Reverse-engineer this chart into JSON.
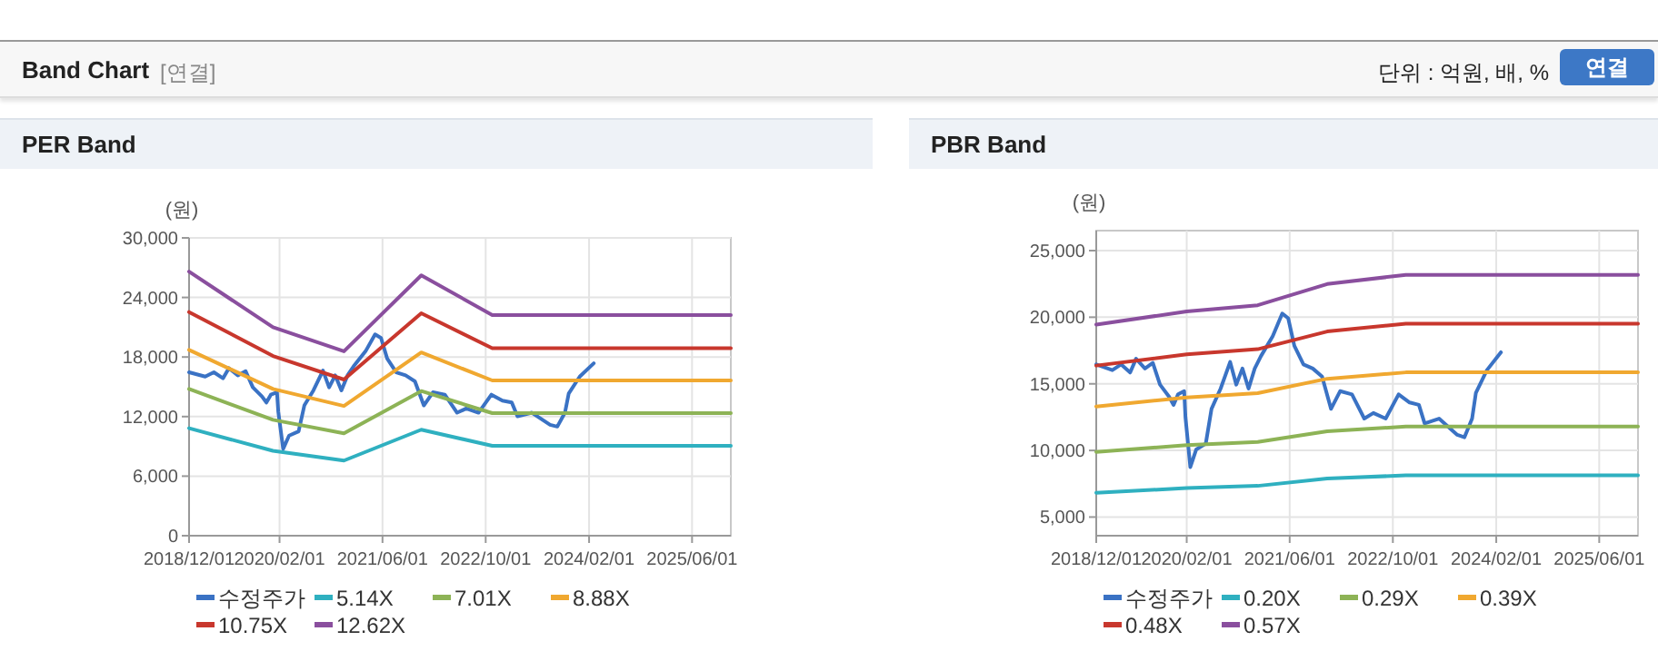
{
  "chart_data": [
    {
      "type": "line",
      "title": "PER Band",
      "ylabel": "(원)",
      "annotations": [
        "Band Chart",
        "[연결]",
        "단위 : 억원, 배, %",
        "연결"
      ],
      "xlim": [
        "2018-12-01",
        "2025-12-01"
      ],
      "xticks": [
        {
          "value": "2018-12-01",
          "label": "2018/12/01"
        },
        {
          "value": "2020-02-01",
          "label": "2020/02/01"
        },
        {
          "value": "2021-06-01",
          "label": "2021/06/01"
        },
        {
          "value": "2022-10-01",
          "label": "2022/10/01"
        },
        {
          "value": "2024-02-01",
          "label": "2024/02/01"
        },
        {
          "value": "2025-06-01",
          "label": "2025/06/01"
        }
      ],
      "ylim": [
        0,
        30000
      ],
      "yticks": [
        0,
        {
          "value": 6000,
          "label": "6,000"
        },
        {
          "value": 12000,
          "label": "12,000"
        },
        {
          "value": 18000,
          "label": "18,000"
        },
        {
          "value": 24000,
          "label": "24,000"
        },
        {
          "value": 30000,
          "label": "30,000"
        }
      ],
      "grid": true,
      "legend": "bottom",
      "series": [
        {
          "name": "수정주가",
          "color": "#3a72c4",
          "x": [
            "2018-12-01",
            "2019-02-15",
            "2019-03-28",
            "2019-05-10",
            "2019-06-07",
            "2019-07-19",
            "2019-08-25",
            "2019-09-28",
            "2019-11-10",
            "2019-12-01",
            "2019-12-22",
            "2020-01-20",
            "2020-01-26",
            "2020-02-18",
            "2020-03-17",
            "2020-05-01",
            "2020-05-28",
            "2020-07-10",
            "2020-08-24",
            "2020-09-22",
            "2020-10-21",
            "2020-11-19",
            "2020-12-18",
            "2021-01-16",
            "2021-03-13",
            "2021-04-27",
            "2021-05-25",
            "2021-06-23",
            "2021-08-05",
            "2021-09-18",
            "2021-11-01",
            "2021-12-13",
            "2022-01-25",
            "2022-03-22",
            "2022-05-19",
            "2022-07-01",
            "2022-08-28",
            "2022-10-28",
            "2022-12-19",
            "2023-02-01",
            "2023-02-28",
            "2023-05-07",
            "2023-08-01",
            "2023-09-04",
            "2023-10-10",
            "2023-10-28",
            "2023-12-19",
            "2024-02-23"
          ],
          "values": [
            16460,
            16030,
            16460,
            15850,
            16880,
            16150,
            16580,
            14940,
            14030,
            13420,
            14210,
            14450,
            12510,
            8750,
            10080,
            10510,
            13120,
            14640,
            16640,
            14940,
            16150,
            14640,
            16150,
            17070,
            18580,
            20280,
            19920,
            17850,
            16460,
            16150,
            15550,
            13120,
            14450,
            14210,
            12390,
            12810,
            12390,
            14210,
            13600,
            13420,
            12020,
            12390,
            11170,
            10990,
            12390,
            14330,
            16030,
            17370
          ]
        },
        {
          "name": "5.14X",
          "color": "#2fb0c0",
          "x": [
            "2018-12-01",
            "2020-01-01",
            "2020-12-01",
            "2021-12-01",
            "2022-11-01",
            "2025-12-01"
          ],
          "values": [
            10830,
            8550,
            7570,
            10680,
            9050,
            9050
          ]
        },
        {
          "name": "7.01X",
          "color": "#8db356",
          "x": [
            "2018-12-01",
            "2020-01-01",
            "2020-12-01",
            "2021-12-01",
            "2022-11-01",
            "2025-12-01"
          ],
          "values": [
            14780,
            11670,
            10320,
            14570,
            12350,
            12350
          ]
        },
        {
          "name": "8.88X",
          "color": "#f0a830",
          "x": [
            "2018-12-01",
            "2020-01-01",
            "2020-12-01",
            "2021-12-01",
            "2022-11-01",
            "2025-12-01"
          ],
          "values": [
            18720,
            14780,
            13070,
            18460,
            15640,
            15640
          ]
        },
        {
          "name": "10.75X",
          "color": "#c8372d",
          "x": [
            "2018-12-01",
            "2020-01-01",
            "2020-12-01",
            "2021-12-01",
            "2022-11-01",
            "2025-12-01"
          ],
          "values": [
            22530,
            18100,
            15730,
            22410,
            18890,
            18890
          ]
        },
        {
          "name": "12.62X",
          "color": "#8a4f9e",
          "x": [
            "2018-12-01",
            "2020-01-01",
            "2020-12-01",
            "2021-12-01",
            "2022-11-01",
            "2025-12-01"
          ],
          "values": [
            26600,
            21000,
            18580,
            26230,
            22230,
            22230
          ]
        }
      ]
    },
    {
      "type": "line",
      "title": "PBR Band",
      "ylabel": "(원)",
      "xlim": [
        "2018-12-01",
        "2025-12-01"
      ],
      "xticks": [
        {
          "value": "2018-12-01",
          "label": "2018/12/01"
        },
        {
          "value": "2020-02-01",
          "label": "2020/02/01"
        },
        {
          "value": "2021-06-01",
          "label": "2021/06/01"
        },
        {
          "value": "2022-10-01",
          "label": "2022/10/01"
        },
        {
          "value": "2024-02-01",
          "label": "2024/02/01"
        },
        {
          "value": "2025-06-01",
          "label": "2025/06/01"
        }
      ],
      "ylim": [
        3600,
        26500
      ],
      "yticks": [
        {
          "value": 5000,
          "label": "5,000"
        },
        {
          "value": 10000,
          "label": "10,000"
        },
        {
          "value": 15000,
          "label": "15,000"
        },
        {
          "value": 20000,
          "label": "20,000"
        },
        {
          "value": 25000,
          "label": "25,000"
        }
      ],
      "grid": true,
      "legend": "bottom",
      "series": [
        {
          "name": "수정주가",
          "color": "#3a72c4",
          "x": [
            "2018-12-01",
            "2019-02-15",
            "2019-03-28",
            "2019-05-10",
            "2019-06-07",
            "2019-07-19",
            "2019-08-25",
            "2019-09-28",
            "2019-11-10",
            "2019-12-01",
            "2019-12-22",
            "2020-01-20",
            "2020-01-26",
            "2020-02-18",
            "2020-03-17",
            "2020-05-01",
            "2020-05-28",
            "2020-07-10",
            "2020-08-24",
            "2020-09-22",
            "2020-10-21",
            "2020-11-19",
            "2020-12-18",
            "2021-01-16",
            "2021-03-13",
            "2021-04-27",
            "2021-05-25",
            "2021-06-23",
            "2021-08-05",
            "2021-09-18",
            "2021-11-01",
            "2021-12-13",
            "2022-01-25",
            "2022-03-22",
            "2022-05-19",
            "2022-07-01",
            "2022-08-28",
            "2022-10-28",
            "2022-12-19",
            "2023-02-01",
            "2023-02-28",
            "2023-05-07",
            "2023-08-01",
            "2023-09-04",
            "2023-10-10",
            "2023-10-28",
            "2023-12-19",
            "2024-02-23"
          ],
          "values": [
            16460,
            16030,
            16460,
            15850,
            16880,
            16150,
            16580,
            14940,
            14030,
            13420,
            14210,
            14450,
            12510,
            8750,
            10080,
            10510,
            13120,
            14640,
            16640,
            14940,
            16150,
            14640,
            16150,
            17070,
            18580,
            20280,
            19920,
            17850,
            16460,
            16150,
            15550,
            13120,
            14450,
            14210,
            12390,
            12810,
            12390,
            14210,
            13600,
            13420,
            12020,
            12390,
            11170,
            10990,
            12390,
            14330,
            16030,
            17370
          ]
        },
        {
          "name": "0.20X",
          "color": "#2fb0c0",
          "x": [
            "2018-12-01",
            "2020-02-01",
            "2021-01-01",
            "2021-11-25",
            "2022-12-01",
            "2025-12-01"
          ],
          "values": [
            6820,
            7170,
            7340,
            7890,
            8130,
            8130
          ]
        },
        {
          "name": "0.29X",
          "color": "#8db356",
          "x": [
            "2018-12-01",
            "2020-02-01",
            "2021-01-01",
            "2021-11-25",
            "2022-12-01",
            "2025-12-01"
          ],
          "values": [
            9890,
            10400,
            10640,
            11440,
            11790,
            11790
          ]
        },
        {
          "name": "0.39X",
          "color": "#f0a830",
          "x": [
            "2018-12-01",
            "2020-02-01",
            "2021-01-01",
            "2021-11-25",
            "2022-12-01",
            "2025-12-01"
          ],
          "values": [
            13300,
            13980,
            14300,
            15380,
            15860,
            15860
          ]
        },
        {
          "name": "0.48X",
          "color": "#c8372d",
          "x": [
            "2018-12-01",
            "2020-02-01",
            "2021-01-01",
            "2021-11-25",
            "2022-12-01",
            "2025-12-01"
          ],
          "values": [
            16370,
            17210,
            17600,
            18930,
            19520,
            19520
          ]
        },
        {
          "name": "0.57X",
          "color": "#8a4f9e",
          "x": [
            "2018-12-01",
            "2020-02-01",
            "2021-01-01",
            "2021-11-25",
            "2022-12-01",
            "2025-12-01"
          ],
          "values": [
            19440,
            20440,
            20900,
            22490,
            23180,
            23180
          ]
        }
      ]
    }
  ]
}
